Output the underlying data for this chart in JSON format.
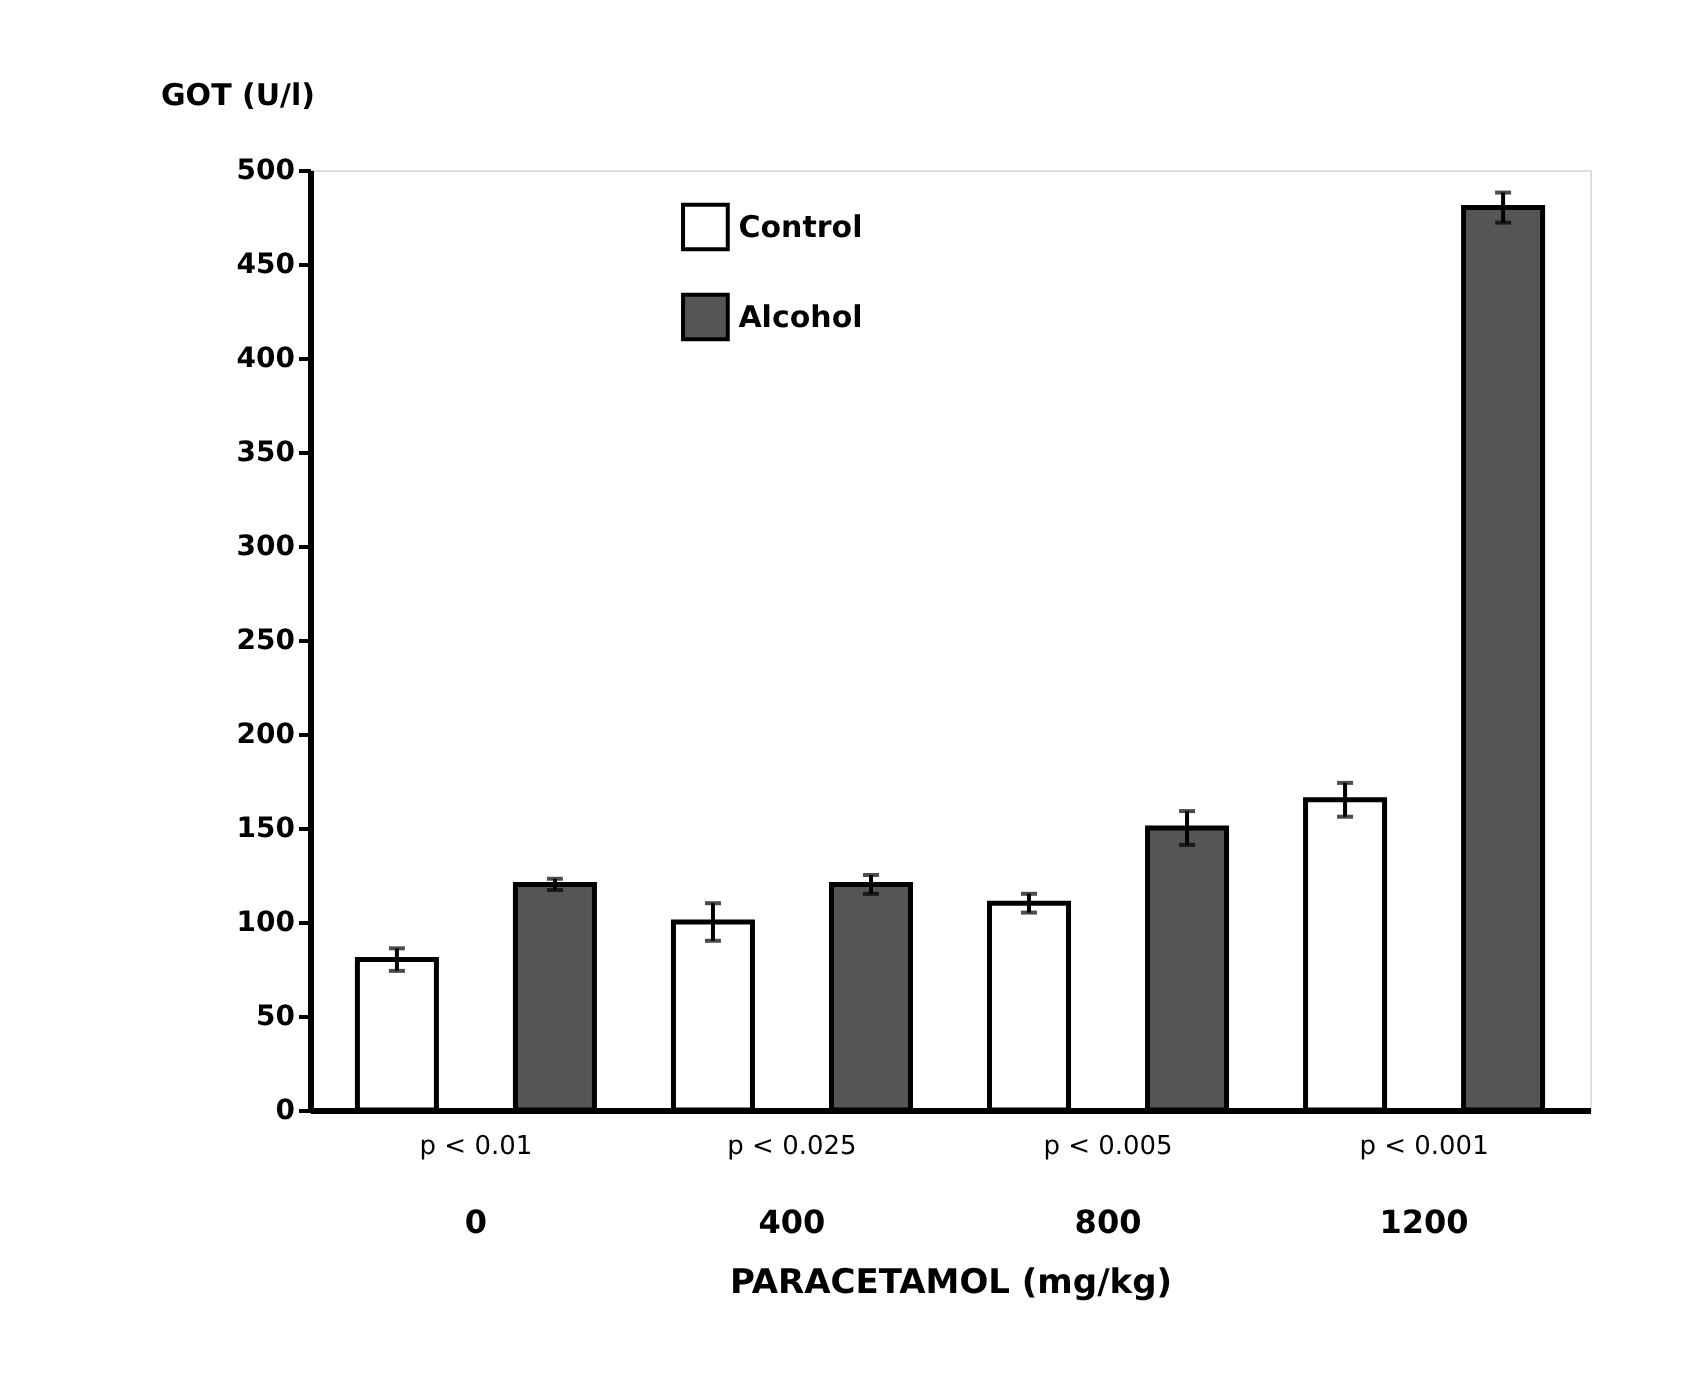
{
  "chart_data": {
    "type": "bar",
    "xlabel": "PARACETAMOL (mg/kg)",
    "ylabel": "GOT (U/l)",
    "categories": [
      "0",
      "400",
      "800",
      "1200"
    ],
    "series": [
      {
        "name": "Control",
        "color": "#ffffff",
        "values": [
          80,
          100,
          110,
          165
        ],
        "errors": [
          6,
          10,
          5,
          9
        ]
      },
      {
        "name": "Alcohol",
        "color": "#555555",
        "values": [
          120,
          120,
          150,
          480
        ],
        "errors": [
          3,
          5,
          9,
          8
        ]
      }
    ],
    "ylim": [
      0,
      500
    ],
    "yticks": [
      0,
      50,
      100,
      150,
      200,
      250,
      300,
      350,
      400,
      450,
      500
    ],
    "grid": false,
    "legend": "top left",
    "annotations": [
      "p < 0.01",
      "p < 0.025",
      "p < 0.005",
      "p < 0.001"
    ]
  }
}
